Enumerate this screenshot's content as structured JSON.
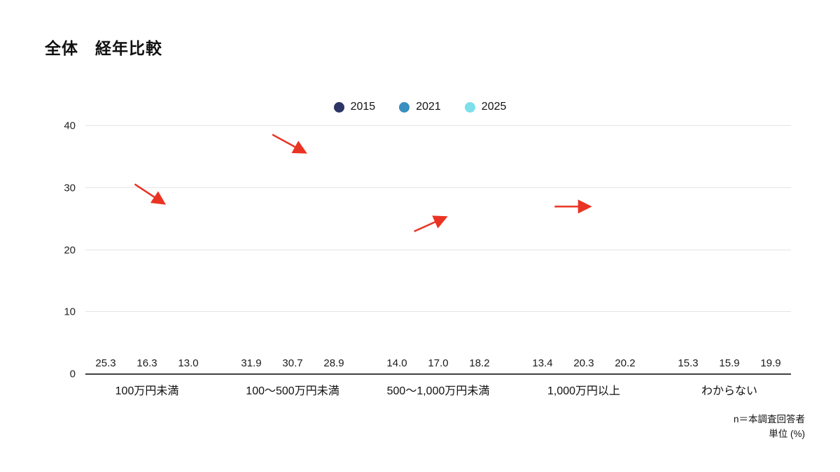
{
  "page": {
    "title": "全体　経年比較"
  },
  "chart_data": {
    "type": "bar",
    "title": "全体　経年比較",
    "categories": [
      "100万円未満",
      "100〜500万円未満",
      "500〜1,000万円未満",
      "1,000万円以上",
      "わからない"
    ],
    "series": [
      {
        "name": "2015",
        "color": "#2C3565",
        "values": [
          25.3,
          31.9,
          14.0,
          13.4,
          15.3
        ]
      },
      {
        "name": "2021",
        "color": "#3A8FC1",
        "values": [
          16.3,
          30.7,
          17.0,
          20.3,
          15.9
        ]
      },
      {
        "name": "2025",
        "color": "#7CE0EA",
        "values": [
          13.0,
          28.9,
          18.2,
          20.2,
          19.9
        ]
      }
    ],
    "ylim": [
      0,
      40
    ],
    "yticks": [
      0,
      10,
      20,
      30,
      40
    ],
    "grid": true,
    "legend_position": "top-center",
    "annotations": [
      {
        "type": "arrow",
        "direction": "down-right",
        "color": "#EA3323",
        "x1_pct": 7.0,
        "y1_pct": 23.5,
        "x2_pct": 11.0,
        "y2_pct": 31.0
      },
      {
        "type": "arrow",
        "direction": "down-right",
        "color": "#EA3323",
        "x1_pct": 26.5,
        "y1_pct": 3.5,
        "x2_pct": 31.0,
        "y2_pct": 10.5
      },
      {
        "type": "arrow",
        "direction": "up-right",
        "color": "#EA3323",
        "x1_pct": 46.6,
        "y1_pct": 42.5,
        "x2_pct": 50.9,
        "y2_pct": 37.0
      },
      {
        "type": "arrow",
        "direction": "right",
        "color": "#EA3323",
        "x1_pct": 66.5,
        "y1_pct": 32.5,
        "x2_pct": 71.3,
        "y2_pct": 32.5
      }
    ]
  },
  "footnote": {
    "line1": "n＝本調査回答者",
    "line2": "単位 (%)"
  }
}
